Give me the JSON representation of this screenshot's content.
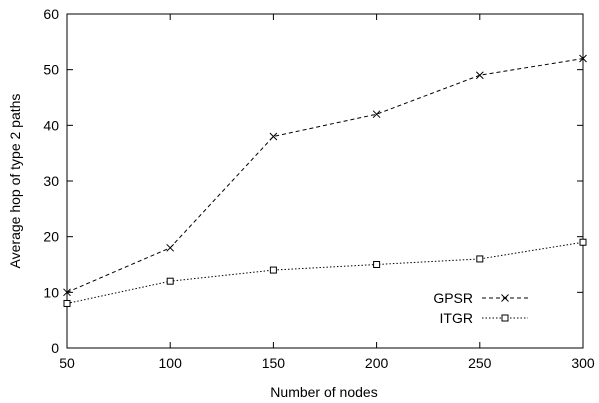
{
  "chart_data": {
    "type": "line",
    "xlabel": "Number of nodes",
    "ylabel": "Average hop of type 2 paths",
    "xlim": [
      50,
      300
    ],
    "ylim": [
      0,
      60
    ],
    "xticks": [
      50,
      100,
      150,
      200,
      250,
      300
    ],
    "yticks": [
      0,
      10,
      20,
      30,
      40,
      50,
      60
    ],
    "grid": false,
    "legend_position": "bottom-right",
    "series": [
      {
        "name": "GPSR",
        "marker": "x",
        "line_style": "dashed",
        "x": [
          50,
          100,
          150,
          200,
          250,
          300
        ],
        "y": [
          10,
          18,
          38,
          42,
          49,
          52
        ]
      },
      {
        "name": "ITGR",
        "marker": "square",
        "line_style": "dotted",
        "x": [
          50,
          100,
          150,
          200,
          250,
          300
        ],
        "y": [
          8,
          12,
          14,
          15,
          16,
          19
        ]
      }
    ]
  }
}
